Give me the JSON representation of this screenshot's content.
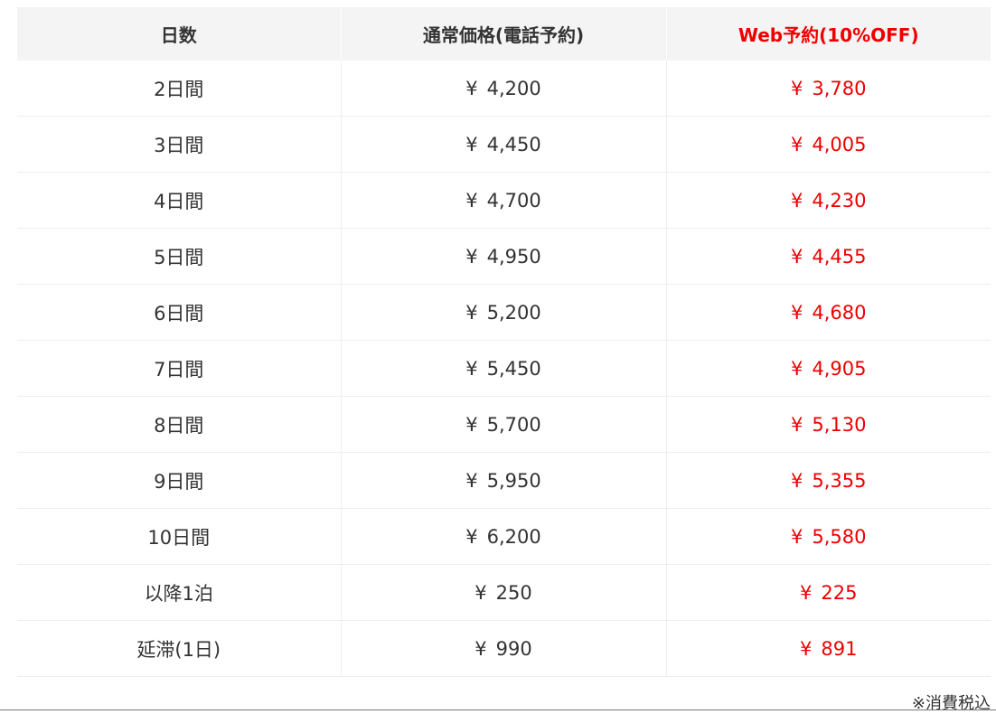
{
  "table": {
    "headers": {
      "days": "日数",
      "regular": "通常価格(電話予約)",
      "web": "Web予約(10%OFF)"
    },
    "yen_symbol": "¥",
    "rows": [
      {
        "days": "2日間",
        "regular": "4,200",
        "web": "3,780"
      },
      {
        "days": "3日間",
        "regular": "4,450",
        "web": "4,005"
      },
      {
        "days": "4日間",
        "regular": "4,700",
        "web": "4,230"
      },
      {
        "days": "5日間",
        "regular": "4,950",
        "web": "4,455"
      },
      {
        "days": "6日間",
        "regular": "5,200",
        "web": "4,680"
      },
      {
        "days": "7日間",
        "regular": "5,450",
        "web": "4,905"
      },
      {
        "days": "8日間",
        "regular": "5,700",
        "web": "5,130"
      },
      {
        "days": "9日間",
        "regular": "5,950",
        "web": "5,355"
      },
      {
        "days": "10日間",
        "regular": "6,200",
        "web": "5,580"
      },
      {
        "days": "以降1泊",
        "regular": "250",
        "web": "225"
      },
      {
        "days": "延滞(1日)",
        "regular": "990",
        "web": "891"
      }
    ]
  },
  "note": "※消費税込",
  "colors": {
    "web_price": "#ee0000",
    "header_bg": "#f4f4f4",
    "text": "#333333"
  }
}
